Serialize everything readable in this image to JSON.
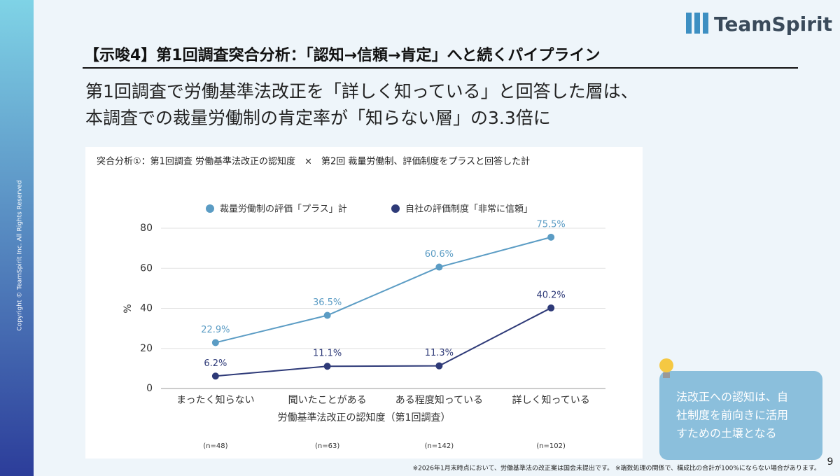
{
  "logo": "TeamSpirit",
  "copyright": "Copyright © TeamSpirit Inc. All Rights Reserved",
  "heading": "【示唆4】第1回調査突合分析：「認知→信頼→肯定」へと続くパイプライン",
  "subtitle": [
    "第1回調査で労働基準法改正を「詳しく知っている」と回答した層は、",
    "本調査での裁量労働制の肯定率が「知らない層」の3.3倍に"
  ],
  "tip": [
    "法改正への認知は、自",
    "社制度を前向きに活用",
    "すための土壌となる"
  ],
  "footnote": "※2026年1月末時点において、労働基準法の改正案は国会未提出です。 ※端数処理の関係で、構成比の合計が100%にならない場合があります。",
  "page_number": "9",
  "chart_data": {
    "type": "line",
    "title": "突合分析①：第1回調査 労働基準法改正の認知度　×　第2回 裁量労働制、評価制度をプラスと回答した計",
    "x_label": "労働基準法改正の認知度（第1回調査）",
    "y_label": "%",
    "categories": [
      "まったく知らない",
      "聞いたことがある",
      "ある程度知っている",
      "詳しく知っている"
    ],
    "sample_sizes": [
      "(n=48)",
      "(n=63)",
      "(n=142)",
      "(n=102)"
    ],
    "series": [
      {
        "name": "裁量労働制の評価「プラス」計",
        "color": "#5b9cc4",
        "values": [
          22.9,
          36.5,
          60.6,
          75.5
        ],
        "value_labels": [
          "22.9%",
          "36.5%",
          "60.6%",
          "75.5%"
        ]
      },
      {
        "name": "自社の評価制度「非常に信頼」",
        "color": "#2e3a78",
        "values": [
          6.2,
          11.1,
          11.3,
          40.2
        ],
        "value_labels": [
          "6.2%",
          "11.1%",
          "11.3%",
          "40.2%"
        ]
      }
    ],
    "ylim": [
      0,
      80
    ],
    "yticks": [
      0,
      20,
      40,
      60,
      80
    ],
    "grid": true
  }
}
